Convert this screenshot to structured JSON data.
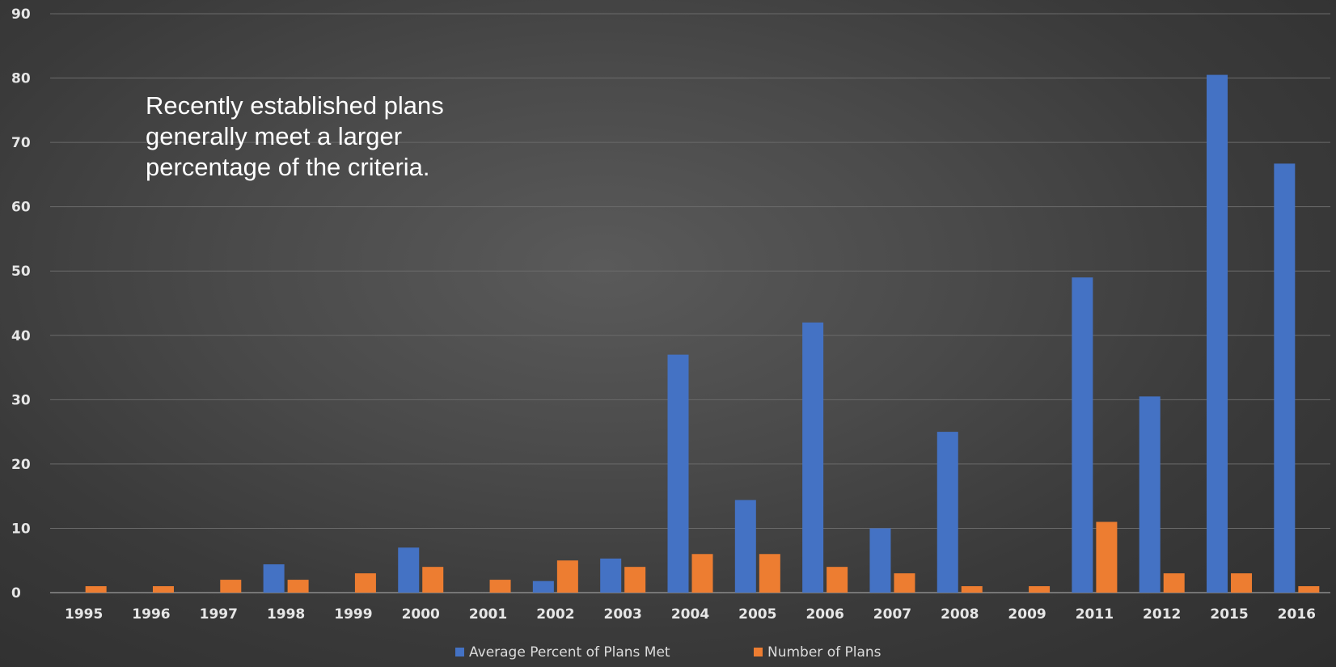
{
  "annotation": "Recently established plans generally meet a larger percentage of the criteria.",
  "colors": {
    "series1": "#4472c4",
    "series2": "#ed7d31",
    "grid": "#6a6a6a",
    "text": "#e6e6e6"
  },
  "chart_data": {
    "type": "bar",
    "title": "",
    "xlabel": "",
    "ylabel": "",
    "ylim": [
      0,
      90
    ],
    "yticks": [
      0,
      10,
      20,
      30,
      40,
      50,
      60,
      70,
      80,
      90
    ],
    "grid": true,
    "legend_position": "bottom",
    "categories": [
      "1995",
      "1996",
      "1997",
      "1998",
      "1999",
      "2000",
      "2001",
      "2002",
      "2003",
      "2004",
      "2005",
      "2006",
      "2007",
      "2008",
      "2009",
      "2011",
      "2012",
      "2015",
      "2016"
    ],
    "series": [
      {
        "name": "Average Percent of Plans Met",
        "color": "#4472c4",
        "values": [
          0,
          0,
          0,
          4.4,
          0,
          7,
          0,
          1.8,
          5.3,
          37,
          14.4,
          42,
          10,
          25,
          0,
          49,
          30.5,
          80.5,
          66.7
        ]
      },
      {
        "name": "Number of Plans",
        "color": "#ed7d31",
        "values": [
          1,
          1,
          2,
          2,
          3,
          4,
          2,
          5,
          4,
          6,
          6,
          4,
          3,
          1,
          1,
          11,
          3,
          3,
          1
        ]
      }
    ]
  }
}
